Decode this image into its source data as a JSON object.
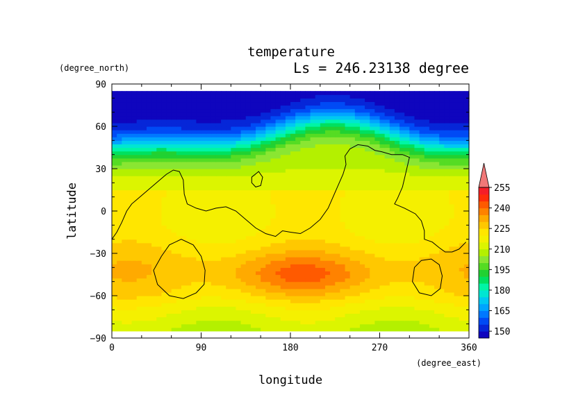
{
  "chart_data": {
    "type": "heatmap",
    "title": "temperature",
    "subtitle": "Ls = 246.23138 degree",
    "xlabel": "longitude",
    "ylabel": "latitude",
    "x_units": "(degree_east)",
    "y_units": "(degree_north)",
    "xlim": [
      0,
      360
    ],
    "ylim": [
      -90,
      90
    ],
    "data_lat_range": [
      -85,
      85
    ],
    "data_lon_range": [
      0,
      355
    ],
    "x_ticks": [
      "0",
      "90",
      "180",
      "270",
      "360"
    ],
    "y_ticks": [
      "90",
      "60",
      "30",
      "0",
      "−30",
      "−60",
      "−90"
    ],
    "x_tick_values": [
      0,
      90,
      180,
      270,
      360
    ],
    "y_tick_values": [
      90,
      60,
      30,
      0,
      -30,
      -60,
      -90
    ],
    "colorbar": {
      "levels": [
        145,
        150,
        155,
        160,
        165,
        170,
        175,
        180,
        185,
        190,
        195,
        200,
        205,
        210,
        215,
        220,
        225,
        230,
        235,
        240,
        245,
        250,
        255,
        260
      ],
      "tick_labels": [
        "150",
        "165",
        "180",
        "195",
        "210",
        "225",
        "240",
        "255"
      ],
      "tick_values": [
        150,
        165,
        180,
        195,
        210,
        225,
        240,
        255
      ],
      "extend": "max",
      "colors": [
        "#0f05be",
        "#0626d8",
        "#004af5",
        "#0078ff",
        "#00a4ff",
        "#00c8f2",
        "#00e6d2",
        "#00f5a5",
        "#00e05f",
        "#21d132",
        "#55dc23",
        "#8ae632",
        "#b4f000",
        "#dcf500",
        "#f5f000",
        "#ffe600",
        "#ffc800",
        "#ffaa00",
        "#ff8200",
        "#ff5a00",
        "#ff2d0a",
        "#f51e28",
        "#e61e46",
        "#f07878"
      ]
    },
    "field_description": {
      "south_polar_band_K": 212,
      "southern_midlat_warm_core_K": [
        230,
        242
      ],
      "equator_K": 218,
      "northern_midlat_gradient_K": [
        205,
        165
      ],
      "north_polar_K": 145
    },
    "contours": [
      {
        "name": "topography-contour-main",
        "points": [
          [
            0,
            -20
          ],
          [
            5,
            -15
          ],
          [
            10,
            -8
          ],
          [
            15,
            0
          ],
          [
            20,
            5
          ],
          [
            25,
            8
          ],
          [
            35,
            14
          ],
          [
            45,
            20
          ],
          [
            55,
            26
          ],
          [
            62,
            29
          ],
          [
            68,
            28
          ],
          [
            72,
            22
          ],
          [
            73,
            12
          ],
          [
            76,
            5
          ],
          [
            85,
            2
          ],
          [
            95,
            0
          ],
          [
            105,
            2
          ],
          [
            115,
            3
          ],
          [
            125,
            0
          ],
          [
            135,
            -6
          ],
          [
            145,
            -12
          ],
          [
            155,
            -16
          ],
          [
            165,
            -18
          ],
          [
            172,
            -14
          ],
          [
            180,
            -15
          ],
          [
            190,
            -16
          ],
          [
            200,
            -12
          ],
          [
            210,
            -6
          ],
          [
            218,
            2
          ],
          [
            223,
            10
          ],
          [
            228,
            18
          ],
          [
            233,
            26
          ],
          [
            236,
            33
          ],
          [
            235,
            39
          ],
          [
            240,
            44
          ],
          [
            248,
            47
          ],
          [
            258,
            46
          ],
          [
            265,
            43
          ],
          [
            272,
            42
          ],
          [
            282,
            40
          ],
          [
            293,
            40
          ],
          [
            300,
            38
          ],
          [
            296,
            26
          ],
          [
            293,
            17
          ],
          [
            288,
            9
          ],
          [
            285,
            5
          ],
          [
            295,
            2
          ],
          [
            306,
            -2
          ],
          [
            312,
            -7
          ],
          [
            315,
            -14
          ],
          [
            315,
            -20
          ],
          [
            323,
            -22
          ],
          [
            330,
            -26
          ],
          [
            336,
            -29
          ],
          [
            343,
            -29
          ],
          [
            350,
            -27
          ],
          [
            357,
            -22
          ]
        ]
      },
      {
        "name": "topography-contour-islet",
        "closed": true,
        "points": [
          [
            141,
            24
          ],
          [
            148,
            28
          ],
          [
            152,
            24
          ],
          [
            150,
            18
          ],
          [
            145,
            17
          ],
          [
            141,
            20
          ]
        ]
      },
      {
        "name": "topography-contour-west-crater",
        "closed": true,
        "points": [
          [
            50,
            -32
          ],
          [
            58,
            -24
          ],
          [
            70,
            -20
          ],
          [
            82,
            -24
          ],
          [
            90,
            -32
          ],
          [
            94,
            -42
          ],
          [
            93,
            -52
          ],
          [
            85,
            -58
          ],
          [
            72,
            -62
          ],
          [
            58,
            -60
          ],
          [
            46,
            -52
          ],
          [
            42,
            -42
          ]
        ]
      },
      {
        "name": "topography-contour-east-crater",
        "closed": true,
        "points": [
          [
            305,
            -40
          ],
          [
            312,
            -35
          ],
          [
            322,
            -34
          ],
          [
            330,
            -38
          ],
          [
            333,
            -46
          ],
          [
            331,
            -55
          ],
          [
            322,
            -60
          ],
          [
            310,
            -58
          ],
          [
            303,
            -50
          ]
        ]
      }
    ]
  }
}
